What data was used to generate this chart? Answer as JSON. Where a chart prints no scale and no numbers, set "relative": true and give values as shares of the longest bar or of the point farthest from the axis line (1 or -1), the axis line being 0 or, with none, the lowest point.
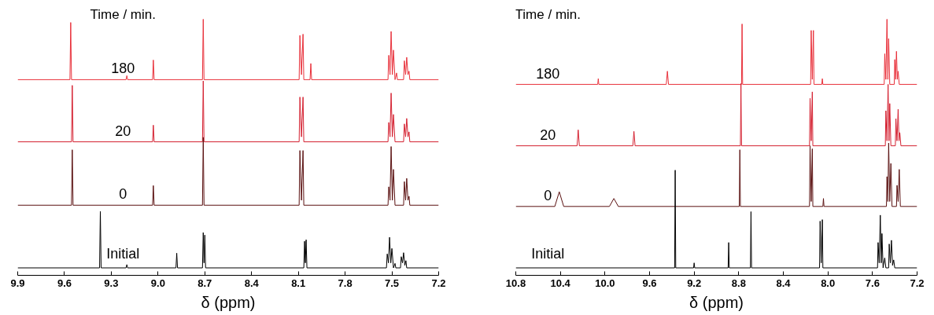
{
  "chart_data": [
    {
      "type": "line",
      "relative": true,
      "xlim": [
        9.9,
        7.2
      ],
      "xticks": [
        9.9,
        9.6,
        9.3,
        {
          "value": 9,
          "label": "9.0"
        },
        8.7,
        8.4,
        8.1,
        7.8,
        7.5,
        7.2
      ],
      "xlabel": "δ (ppm)",
      "annotations": [
        "Time / min."
      ],
      "series": [
        {
          "name": "180",
          "color": "#e8303a",
          "x": [
            9.9,
            9.565,
            9.56,
            9.555,
            9.205,
            9.2,
            9.195,
            9.035,
            9.03,
            9.025,
            8.715,
            8.71,
            8.705,
            8.095,
            8.09,
            8.08,
            8.07,
            8.065,
            8.025,
            8.02,
            8.015,
            7.525,
            7.52,
            7.512,
            7.505,
            7.497,
            7.49,
            7.48,
            7.47,
            7.465,
            7.425,
            7.42,
            7.412,
            7.405,
            7.397,
            7.39,
            7.385,
            7.2
          ],
          "values": [
            0.757,
            0.757,
            0.987,
            0.757,
            0.757,
            0.773,
            0.757,
            0.757,
            0.836,
            0.757,
            0.757,
            1.0,
            0.757,
            0.757,
            0.935,
            0.777,
            0.94,
            0.757,
            0.757,
            0.822,
            0.757,
            0.757,
            0.855,
            0.777,
            0.951,
            0.777,
            0.876,
            0.757,
            0.784,
            0.757,
            0.757,
            0.833,
            0.777,
            0.847,
            0.777,
            0.791,
            0.757,
            0.757
          ]
        },
        {
          "name": "20",
          "color": "#d42030",
          "x": [
            9.9,
            9.555,
            9.55,
            9.545,
            9.035,
            9.03,
            9.025,
            8.715,
            8.71,
            8.705,
            8.095,
            8.09,
            8.08,
            8.07,
            8.065,
            7.525,
            7.52,
            7.512,
            7.505,
            7.497,
            7.49,
            7.48,
            7.425,
            7.42,
            7.412,
            7.405,
            7.397,
            7.39,
            7.385,
            7.2
          ],
          "values": [
            0.507,
            0.507,
            0.734,
            0.507,
            0.507,
            0.574,
            0.507,
            0.507,
            0.752,
            0.507,
            0.507,
            0.687,
            0.527,
            0.687,
            0.507,
            0.507,
            0.585,
            0.527,
            0.703,
            0.527,
            0.617,
            0.507,
            0.507,
            0.579,
            0.527,
            0.601,
            0.527,
            0.547,
            0.507,
            0.507
          ]
        },
        {
          "name": "0",
          "color": "#5a1010",
          "x": [
            9.9,
            9.555,
            9.55,
            9.545,
            9.035,
            9.03,
            9.025,
            8.715,
            8.71,
            8.705,
            8.095,
            8.09,
            8.08,
            8.07,
            8.065,
            7.525,
            7.52,
            7.512,
            7.505,
            7.497,
            7.49,
            7.48,
            7.425,
            7.42,
            7.412,
            7.405,
            7.397,
            7.39,
            7.385,
            7.2
          ],
          "values": [
            0.252,
            0.252,
            0.475,
            0.252,
            0.252,
            0.331,
            0.252,
            0.252,
            0.525,
            0.252,
            0.252,
            0.472,
            0.272,
            0.472,
            0.252,
            0.252,
            0.326,
            0.272,
            0.488,
            0.272,
            0.396,
            0.252,
            0.252,
            0.347,
            0.272,
            0.36,
            0.272,
            0.288,
            0.252,
            0.252
          ]
        },
        {
          "name": "Initial",
          "color": "#000000",
          "x": [
            9.9,
            9.375,
            9.37,
            9.365,
            9.205,
            9.2,
            9.195,
            8.885,
            8.88,
            8.875,
            8.715,
            8.71,
            8.705,
            8.7,
            8.695,
            8.065,
            8.06,
            8.055,
            8.05,
            8.045,
            7.535,
            7.53,
            7.522,
            7.515,
            7.507,
            7.5,
            7.49,
            7.48,
            7.475,
            7.445,
            7.44,
            7.432,
            7.425,
            7.417,
            7.41,
            7.405,
            7.2
          ],
          "values": [
            0,
            0,
            0.227,
            0,
            0,
            0.013,
            0,
            0,
            0.059,
            0,
            0,
            0.142,
            0.02,
            0.132,
            0,
            0,
            0.107,
            0.02,
            0.113,
            0,
            0,
            0.056,
            0.02,
            0.123,
            0.02,
            0.078,
            0,
            0.018,
            0,
            0,
            0.045,
            0.02,
            0.061,
            0.01,
            0.029,
            0,
            0
          ]
        }
      ]
    },
    {
      "type": "line",
      "relative": true,
      "xlim": [
        10.8,
        7.2
      ],
      "xticks": [
        10.8,
        10.4,
        {
          "value": 10,
          "label": "10.0"
        },
        9.6,
        9.2,
        8.8,
        8.4,
        {
          "value": 8,
          "label": "8.0"
        },
        7.6,
        7.2
      ],
      "xlabel": "δ (ppm)",
      "annotations": [
        "Time / min."
      ],
      "series": [
        {
          "name": "180",
          "color": "#e8303a",
          "x": [
            10.8,
            10.065,
            10.06,
            10.055,
            9.45,
            9.44,
            9.43,
            8.775,
            8.77,
            8.765,
            8.155,
            8.15,
            8.14,
            8.13,
            8.125,
            8.055,
            8.05,
            8.045,
            7.495,
            7.49,
            7.48,
            7.47,
            7.462,
            7.455,
            7.445,
            7.405,
            7.4,
            7.392,
            7.385,
            7.377,
            7.37,
            7.36,
            7.2
          ],
          "values": [
            0.738,
            0.738,
            0.761,
            0.738,
            0.738,
            0.791,
            0.738,
            0.738,
            0.981,
            0.738,
            0.738,
            0.955,
            0.758,
            0.955,
            0.738,
            0.738,
            0.761,
            0.738,
            0.738,
            0.861,
            0.758,
            1.0,
            0.758,
            0.922,
            0.738,
            0.738,
            0.838,
            0.758,
            0.871,
            0.758,
            0.791,
            0.738,
            0.738
          ]
        },
        {
          "name": "20",
          "color": "#d42030",
          "x": [
            10.8,
            10.25,
            10.24,
            10.23,
            9.75,
            9.74,
            9.73,
            8.785,
            8.78,
            8.775,
            8.165,
            8.16,
            8.15,
            8.14,
            8.135,
            7.485,
            7.48,
            7.47,
            7.46,
            7.452,
            7.445,
            7.435,
            7.395,
            7.39,
            7.38,
            7.37,
            7.362,
            7.355,
            7.345,
            7.2
          ],
          "values": [
            0.491,
            0.491,
            0.555,
            0.491,
            0.491,
            0.549,
            0.491,
            0.491,
            0.741,
            0.491,
            0.491,
            0.682,
            0.511,
            0.708,
            0.491,
            0.491,
            0.632,
            0.511,
            0.738,
            0.511,
            0.661,
            0.491,
            0.491,
            0.6,
            0.511,
            0.638,
            0.511,
            0.544,
            0.491,
            0.491
          ]
        },
        {
          "name": "0",
          "color": "#5a1010",
          "x": [
            10.8,
            10.45,
            10.41,
            10.37,
            9.96,
            9.92,
            9.88,
            8.795,
            8.79,
            8.785,
            8.165,
            8.16,
            8.15,
            8.14,
            8.135,
            8.045,
            8.04,
            8.035,
            7.475,
            7.47,
            7.462,
            7.455,
            7.445,
            7.435,
            7.425,
            7.385,
            7.38,
            7.37,
            7.36,
            7.35,
            7.2
          ],
          "values": [
            0.247,
            0.247,
            0.306,
            0.247,
            0.247,
            0.279,
            0.247,
            0.247,
            0.475,
            0.247,
            0.247,
            0.491,
            0.267,
            0.479,
            0.247,
            0.247,
            0.279,
            0.247,
            0.247,
            0.367,
            0.267,
            0.502,
            0.267,
            0.42,
            0.247,
            0.247,
            0.332,
            0.267,
            0.396,
            0.247,
            0.247
          ]
        },
        {
          "name": "Initial",
          "color": "#000000",
          "x": [
            10.8,
            9.375,
            9.37,
            9.365,
            9.205,
            9.2,
            9.195,
            8.895,
            8.89,
            8.885,
            8.695,
            8.69,
            8.685,
            8.075,
            8.07,
            8.06,
            8.05,
            8.045,
            7.555,
            7.55,
            7.54,
            7.53,
            7.522,
            7.515,
            7.505,
            7.49,
            7.48,
            7.455,
            7.45,
            7.44,
            7.43,
            7.42,
            7.41,
            7.4,
            7.2
          ],
          "values": [
            0,
            0,
            0.393,
            0,
            0,
            0.02,
            0,
            0,
            0.102,
            0,
            0,
            0.226,
            0,
            0,
            0.188,
            0.02,
            0.194,
            0,
            0,
            0.102,
            0.02,
            0.212,
            0.02,
            0.138,
            0,
            0.04,
            0,
            0,
            0.096,
            0.02,
            0.111,
            0.01,
            0.032,
            0,
            0
          ]
        }
      ]
    }
  ]
}
